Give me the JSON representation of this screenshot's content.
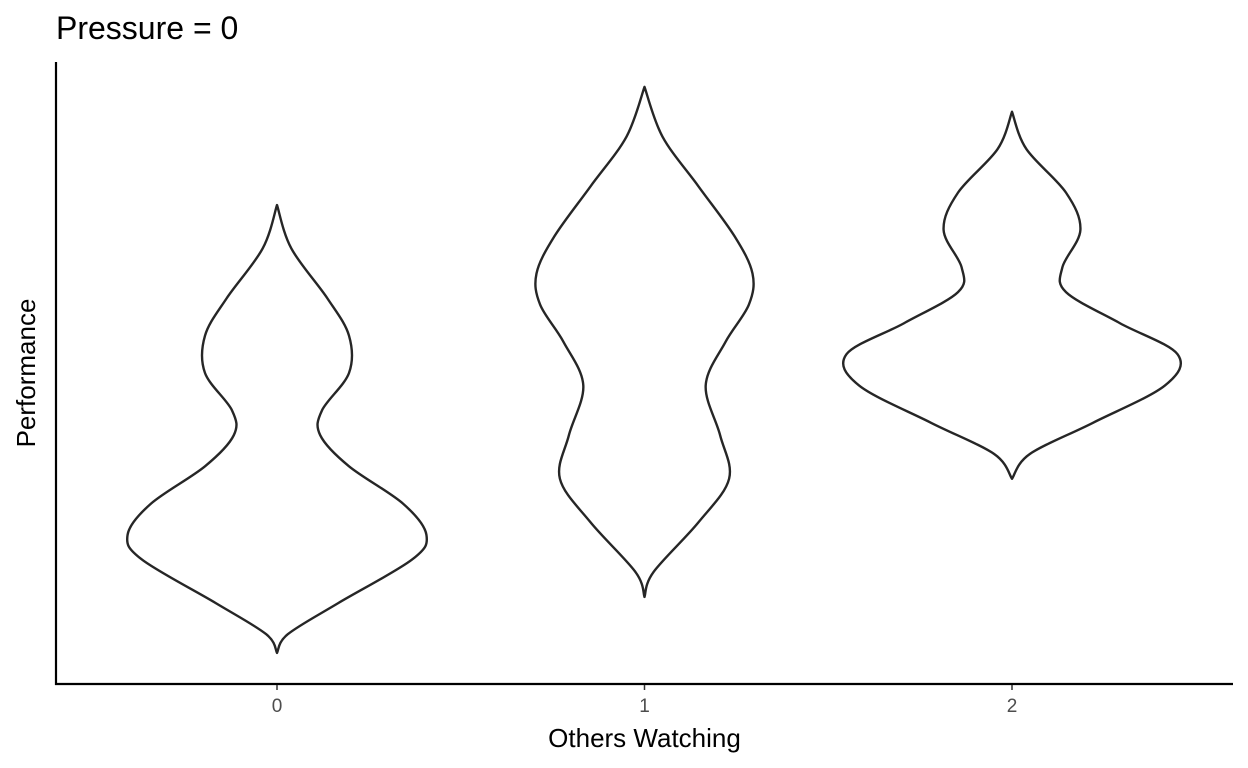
{
  "chart_data": {
    "type": "violin",
    "title": "Pressure = 0",
    "xlabel": "Others Watching",
    "ylabel": "Performance",
    "categories": [
      "0",
      "1",
      "2"
    ],
    "y_ticks_shown": false,
    "grid": false,
    "ylim": [
      0,
      1
    ],
    "series": [
      {
        "category": "0",
        "y_min": 0.05,
        "y_max": 0.77,
        "density_profile": [
          {
            "y": 0.05,
            "half_width": 0.0
          },
          {
            "y": 0.08,
            "half_width": 0.06
          },
          {
            "y": 0.13,
            "half_width": 0.34
          },
          {
            "y": 0.2,
            "half_width": 0.75
          },
          {
            "y": 0.24,
            "half_width": 0.83
          },
          {
            "y": 0.29,
            "half_width": 0.7
          },
          {
            "y": 0.35,
            "half_width": 0.4
          },
          {
            "y": 0.4,
            "half_width": 0.24
          },
          {
            "y": 0.44,
            "half_width": 0.25
          },
          {
            "y": 0.5,
            "half_width": 0.4
          },
          {
            "y": 0.56,
            "half_width": 0.4
          },
          {
            "y": 0.62,
            "half_width": 0.28
          },
          {
            "y": 0.7,
            "half_width": 0.08
          },
          {
            "y": 0.77,
            "half_width": 0.0
          }
        ]
      },
      {
        "category": "1",
        "y_min": 0.14,
        "y_max": 0.96,
        "density_profile": [
          {
            "y": 0.14,
            "half_width": 0.0
          },
          {
            "y": 0.18,
            "half_width": 0.05
          },
          {
            "y": 0.26,
            "half_width": 0.3
          },
          {
            "y": 0.33,
            "half_width": 0.47
          },
          {
            "y": 0.4,
            "half_width": 0.42
          },
          {
            "y": 0.48,
            "half_width": 0.34
          },
          {
            "y": 0.55,
            "half_width": 0.45
          },
          {
            "y": 0.61,
            "half_width": 0.58
          },
          {
            "y": 0.66,
            "half_width": 0.6
          },
          {
            "y": 0.72,
            "half_width": 0.5
          },
          {
            "y": 0.8,
            "half_width": 0.3
          },
          {
            "y": 0.88,
            "half_width": 0.1
          },
          {
            "y": 0.96,
            "half_width": 0.0
          }
        ]
      },
      {
        "category": "2",
        "y_min": 0.33,
        "y_max": 0.92,
        "density_profile": [
          {
            "y": 0.33,
            "half_width": 0.0
          },
          {
            "y": 0.37,
            "half_width": 0.1
          },
          {
            "y": 0.42,
            "half_width": 0.45
          },
          {
            "y": 0.48,
            "half_width": 0.85
          },
          {
            "y": 0.53,
            "half_width": 0.92
          },
          {
            "y": 0.58,
            "half_width": 0.6
          },
          {
            "y": 0.63,
            "half_width": 0.3
          },
          {
            "y": 0.67,
            "half_width": 0.28
          },
          {
            "y": 0.73,
            "half_width": 0.38
          },
          {
            "y": 0.79,
            "half_width": 0.3
          },
          {
            "y": 0.86,
            "half_width": 0.08
          },
          {
            "y": 0.92,
            "half_width": 0.0
          }
        ]
      }
    ]
  }
}
